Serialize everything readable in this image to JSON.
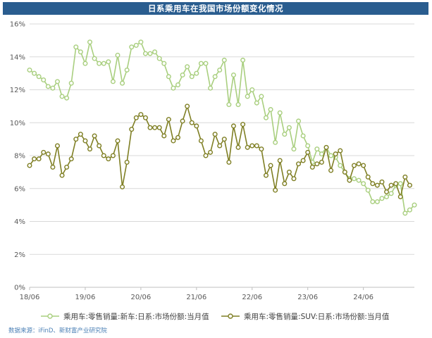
{
  "header": {
    "title": "日系乘用车在我国市场份额变化情况"
  },
  "source": {
    "text": "数据来源：iFinD、新财富产业研究院"
  },
  "chart_data": {
    "type": "line",
    "title": "日系乘用车在我国市场份额变化情况",
    "xlabel": "",
    "ylabel": "",
    "ylim": [
      0,
      16
    ],
    "y_ticks": [
      "0%",
      "2%",
      "4%",
      "6%",
      "8%",
      "10%",
      "12%",
      "14%",
      "16%"
    ],
    "x_ticks": [
      "18/06",
      "19/06",
      "20/06",
      "21/06",
      "22/06",
      "23/06",
      "24/06"
    ],
    "x_start": "2018-06",
    "grid": true,
    "legend_position": "bottom",
    "series": [
      {
        "name": "乘用车:零售销量:新车:日系:市场份额:当月值",
        "color": "#a9cf7f",
        "values": [
          13.2,
          13.0,
          12.8,
          12.6,
          12.2,
          12.1,
          12.5,
          11.6,
          11.5,
          12.4,
          14.6,
          14.3,
          13.6,
          14.9,
          13.9,
          13.6,
          13.6,
          13.7,
          12.5,
          14.1,
          12.4,
          13.2,
          14.6,
          14.7,
          14.9,
          14.2,
          14.2,
          14.3,
          13.9,
          13.6,
          12.8,
          12.1,
          12.3,
          12.9,
          13.4,
          12.8,
          13.0,
          13.6,
          13.6,
          12.1,
          12.8,
          13.2,
          13.8,
          11.1,
          12.9,
          11.1,
          13.8,
          11.6,
          12.0,
          11.2,
          11.6,
          10.3,
          10.8,
          8.8,
          10.6,
          9.3,
          9.7,
          8.4,
          10.1,
          9.2,
          8.6,
          7.6,
          8.4,
          8.1,
          8.5,
          8.0,
          7.9,
          7.4,
          7.0,
          6.6,
          6.6,
          6.5,
          6.3,
          5.9,
          5.2,
          5.2,
          5.4,
          5.5,
          5.7,
          6.2,
          6.3,
          4.5,
          4.7,
          5.0
        ]
      },
      {
        "name": "乘用车:零售销量:SUV:日系:市场份额:当月值",
        "color": "#7f7f24",
        "values": [
          7.4,
          7.8,
          7.8,
          8.2,
          8.1,
          7.3,
          8.6,
          6.8,
          7.3,
          7.8,
          9.0,
          9.3,
          8.9,
          8.4,
          9.2,
          8.6,
          8.0,
          7.8,
          8.0,
          8.9,
          6.1,
          7.6,
          9.6,
          10.3,
          10.5,
          10.3,
          9.7,
          9.7,
          9.7,
          9.2,
          10.2,
          8.9,
          9.1,
          10.1,
          11.0,
          10.0,
          9.8,
          8.9,
          8.0,
          8.2,
          9.3,
          8.6,
          9.0,
          7.6,
          9.8,
          8.5,
          9.9,
          8.5,
          8.6,
          8.6,
          8.4,
          6.8,
          7.4,
          5.9,
          7.7,
          6.3,
          7.0,
          6.6,
          7.5,
          7.7,
          8.2,
          7.3,
          7.5,
          7.6,
          8.5,
          7.1,
          8.1,
          8.3,
          7.0,
          6.5,
          7.4,
          7.5,
          7.4,
          6.7,
          6.3,
          6.2,
          6.4,
          5.8,
          6.2,
          6.3,
          5.5,
          6.7,
          6.2
        ]
      }
    ]
  }
}
